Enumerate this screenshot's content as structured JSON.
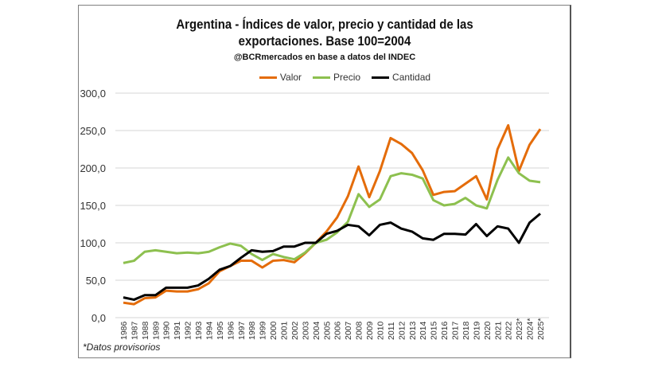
{
  "chart_data": {
    "type": "line",
    "title": "Argentina - Índices de valor, precio y cantidad de las exportaciones. Base 100=2004",
    "title_lines": [
      "Argentina - Índices de valor, precio y cantidad de las",
      "exportaciones. Base 100=2004"
    ],
    "subtitle": "@BCRmercados en base a datos del INDEC",
    "note": "*Datos provisorios",
    "xlabel": "",
    "ylabel": "",
    "ylim": [
      0,
      300
    ],
    "yticks": [
      "0,0",
      "50,0",
      "100,0",
      "150,0",
      "200,0",
      "250,0",
      "300,0"
    ],
    "grid": true,
    "legend": "top",
    "categories": [
      "1986",
      "1987",
      "1988",
      "1989",
      "1990",
      "1991",
      "1992",
      "1993",
      "1994",
      "1995",
      "1996",
      "1997",
      "1998",
      "1999",
      "2000",
      "2001",
      "2002",
      "2003",
      "2004",
      "2005",
      "2006",
      "2007",
      "2008",
      "2009",
      "2010",
      "2011",
      "2012",
      "2013",
      "2014",
      "2015",
      "2016",
      "2017",
      "2018",
      "2019",
      "2020",
      "2021",
      "2022",
      "2023*",
      "2024*",
      "2025*"
    ],
    "series": [
      {
        "name": "Valor",
        "color": "#E46C0A",
        "values": [
          20,
          18,
          26,
          27,
          36,
          35,
          35,
          38,
          46,
          62,
          69,
          76,
          76,
          67,
          76,
          77,
          74,
          86,
          100,
          115,
          134,
          162,
          202,
          161,
          196,
          240,
          232,
          220,
          197,
          164,
          168,
          169,
          179,
          189,
          158,
          225,
          257,
          196,
          231,
          252
        ]
      },
      {
        "name": "Precio",
        "color": "#8DC04F",
        "values": [
          73,
          76,
          88,
          90,
          88,
          86,
          87,
          86,
          88,
          94,
          99,
          96,
          85,
          77,
          85,
          81,
          78,
          87,
          100,
          104,
          114,
          128,
          165,
          148,
          158,
          189,
          193,
          191,
          186,
          157,
          150,
          152,
          160,
          150,
          146,
          184,
          214,
          193,
          183,
          181
        ]
      },
      {
        "name": "Cantidad",
        "color": "#000000",
        "values": [
          27,
          24,
          30,
          30,
          40,
          40,
          40,
          43,
          52,
          64,
          69,
          80,
          90,
          88,
          89,
          95,
          95,
          100,
          100,
          112,
          116,
          124,
          122,
          110,
          124,
          127,
          119,
          115,
          106,
          104,
          112,
          112,
          111,
          125,
          109,
          122,
          119,
          100,
          127,
          139
        ]
      }
    ]
  }
}
